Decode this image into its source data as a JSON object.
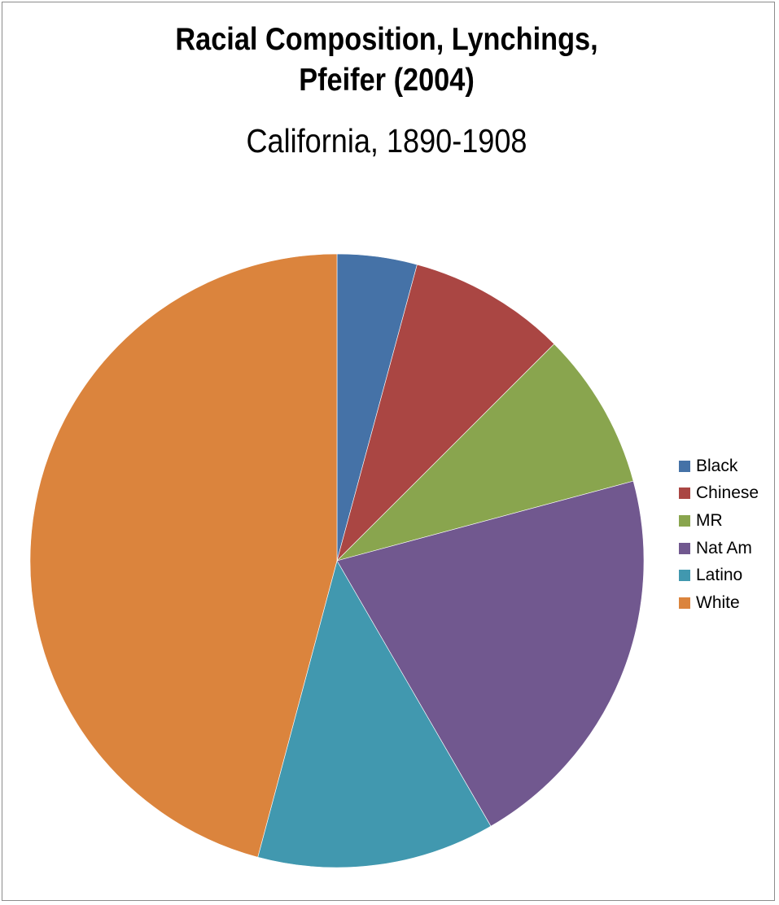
{
  "chart_data": {
    "type": "pie",
    "title": [
      "Racial Composition, Lynchings,",
      "Pfeifer (2004)"
    ],
    "subtitle": "California, 1890-1908",
    "categories": [
      "Black",
      "Chinese",
      "MR",
      "Nat Am",
      "Latino",
      "White"
    ],
    "values": [
      4.2,
      8.3,
      8.3,
      20.8,
      12.5,
      45.8
    ],
    "colors": [
      "#4572a7",
      "#aa4643",
      "#89a54e",
      "#71588f",
      "#4198af",
      "#db843d"
    ],
    "legend_position": "right",
    "start_angle": "12 o'clock",
    "direction": "clockwise"
  }
}
